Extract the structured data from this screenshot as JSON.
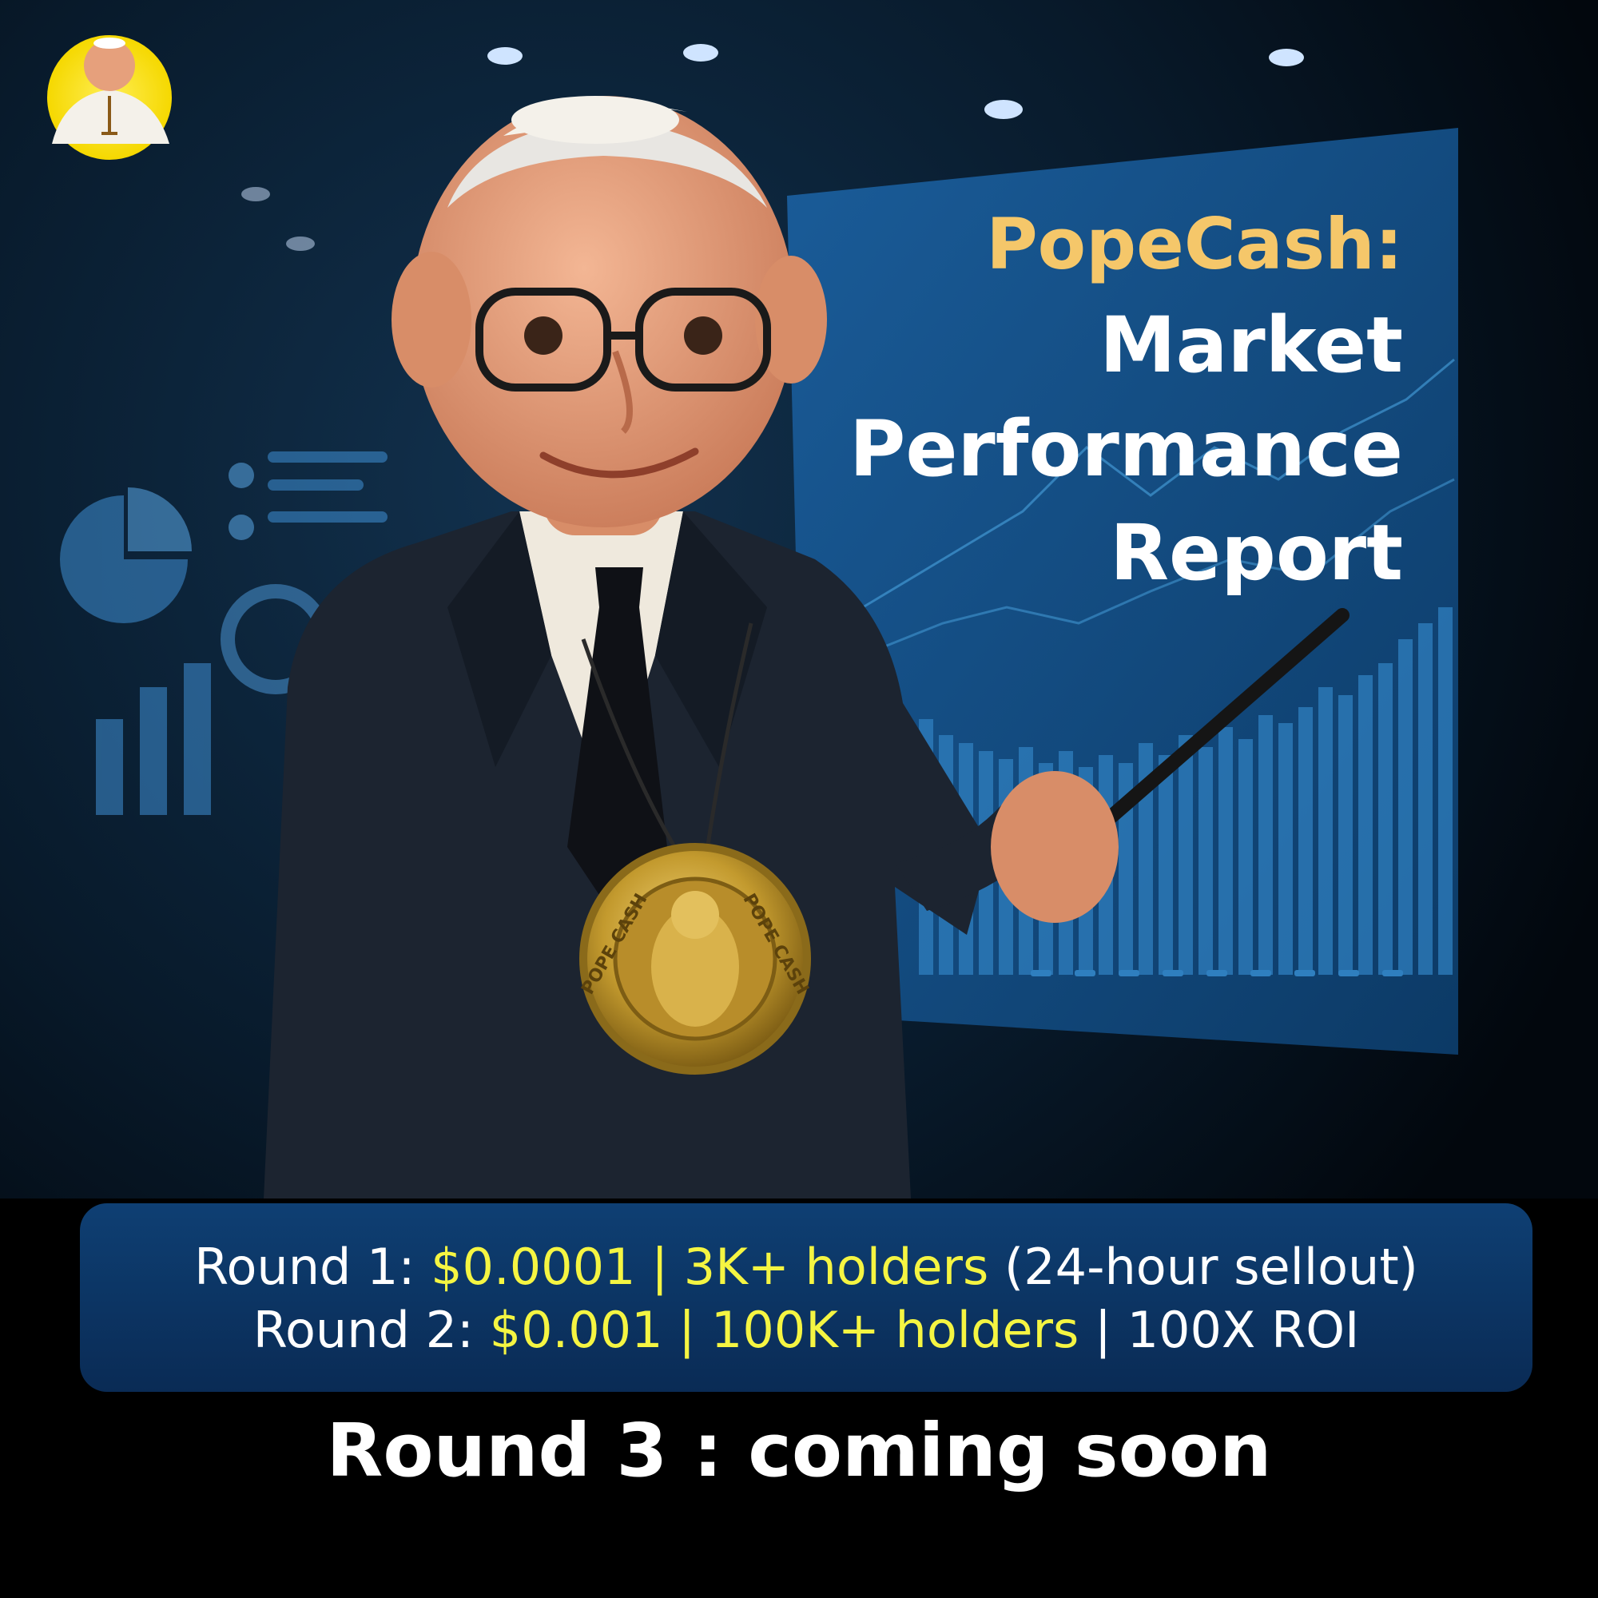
{
  "colors": {
    "background": "#000000",
    "screen": "#114a80",
    "headline_accent": "#f5c76a",
    "highlight": "#f5f542",
    "info_box": "#0e3f73",
    "suit": "#1c2430",
    "skin": "#e8a27e",
    "medal_gold": "#c9a23a"
  },
  "logo": {
    "icon": "pope-avatar-icon"
  },
  "headline": {
    "line1": "PopeCash:",
    "line2": "Market",
    "line3": "Performance",
    "line4": "Report"
  },
  "medal": {
    "text_left": "POPE CASH",
    "text_right": "POPE CASH"
  },
  "rounds": {
    "round1": {
      "label": "Round 1:",
      "price": "$0.0001 | 3K+ holders",
      "note": "(24-hour sellout)"
    },
    "round2": {
      "label": "Round 2:",
      "price": "$0.001 | 100K+ holders",
      "roi": "| 100X ROI"
    }
  },
  "footer": {
    "text": "Round 3 : coming soon"
  }
}
